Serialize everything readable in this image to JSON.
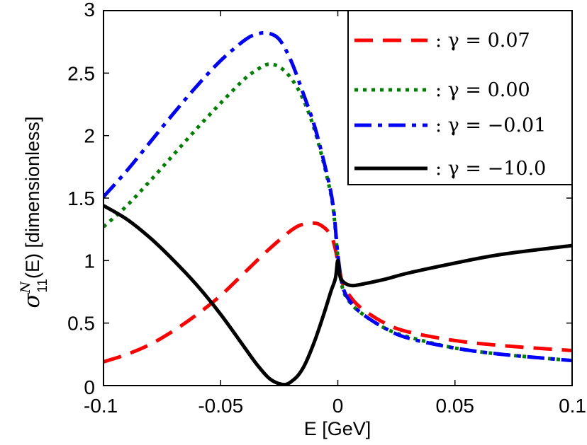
{
  "chart_data": {
    "type": "line",
    "xlabel": "E [GeV]",
    "ylabel_math": "σ",
    "ylabel_sup": "N",
    "ylabel_sub": "11",
    "ylabel_rest": "(E) [dimensionless]",
    "xlim": [
      -0.1,
      0.1
    ],
    "ylim": [
      0,
      3
    ],
    "x_ticks": [
      -0.1,
      -0.05,
      0,
      0.05,
      0.1
    ],
    "x_tick_labels": [
      "-0.1",
      "-0.05",
      "0",
      "0.05",
      "0.1"
    ],
    "y_ticks": [
      0,
      0.5,
      1,
      1.5,
      2,
      2.5,
      3
    ],
    "y_tick_labels": [
      "0",
      "0.5",
      "1",
      "1.5",
      "2",
      "2.5",
      "3"
    ],
    "legend_position": "top-right",
    "series": [
      {
        "name": ": γ = 0.07",
        "color": "#ff0000",
        "style": "dashed",
        "x": [
          -0.1,
          -0.09,
          -0.08,
          -0.07,
          -0.06,
          -0.05,
          -0.04,
          -0.03,
          -0.02,
          -0.015,
          -0.01,
          -0.007,
          -0.004,
          -0.002,
          0,
          0.002,
          0.005,
          0.01,
          0.02,
          0.03,
          0.05,
          0.07,
          0.1
        ],
        "y": [
          0.19,
          0.25,
          0.33,
          0.44,
          0.57,
          0.72,
          0.9,
          1.08,
          1.24,
          1.29,
          1.3,
          1.28,
          1.23,
          1.16,
          1.0,
          0.82,
          0.72,
          0.62,
          0.5,
          0.43,
          0.36,
          0.32,
          0.28
        ]
      },
      {
        "name": ": γ = 0.00",
        "color": "#008000",
        "style": "dotted",
        "x": [
          -0.1,
          -0.09,
          -0.08,
          -0.07,
          -0.06,
          -0.05,
          -0.04,
          -0.035,
          -0.03,
          -0.025,
          -0.02,
          -0.015,
          -0.01,
          -0.005,
          -0.002,
          0,
          0.002,
          0.005,
          0.01,
          0.02,
          0.03,
          0.05,
          0.07,
          0.1
        ],
        "y": [
          1.27,
          1.44,
          1.64,
          1.85,
          2.06,
          2.26,
          2.45,
          2.52,
          2.57,
          2.55,
          2.46,
          2.3,
          2.05,
          1.7,
          1.42,
          1.03,
          0.78,
          0.67,
          0.58,
          0.46,
          0.39,
          0.3,
          0.25,
          0.2
        ]
      },
      {
        "name": ": γ = −0.01",
        "color": "#0000ff",
        "style": "dashdot",
        "x": [
          -0.1,
          -0.09,
          -0.08,
          -0.07,
          -0.06,
          -0.05,
          -0.04,
          -0.035,
          -0.03,
          -0.025,
          -0.02,
          -0.015,
          -0.01,
          -0.005,
          -0.002,
          0,
          0.002,
          0.005,
          0.01,
          0.02,
          0.03,
          0.05,
          0.07,
          0.1
        ],
        "y": [
          1.51,
          1.72,
          1.95,
          2.18,
          2.4,
          2.6,
          2.76,
          2.81,
          2.82,
          2.77,
          2.6,
          2.35,
          2.08,
          1.72,
          1.44,
          1.05,
          0.8,
          0.68,
          0.58,
          0.46,
          0.38,
          0.3,
          0.25,
          0.2
        ]
      },
      {
        "name": ": γ = −10.0",
        "color": "#000000",
        "style": "solid",
        "x": [
          -0.1,
          -0.09,
          -0.08,
          -0.07,
          -0.06,
          -0.05,
          -0.04,
          -0.035,
          -0.03,
          -0.027,
          -0.024,
          -0.022,
          -0.02,
          -0.017,
          -0.014,
          -0.01,
          -0.006,
          -0.003,
          -0.001,
          0,
          0.001,
          0.003,
          0.006,
          0.01,
          0.02,
          0.03,
          0.05,
          0.07,
          0.1
        ],
        "y": [
          1.44,
          1.33,
          1.18,
          1.0,
          0.8,
          0.57,
          0.31,
          0.18,
          0.07,
          0.03,
          0.01,
          0.01,
          0.03,
          0.08,
          0.17,
          0.35,
          0.57,
          0.75,
          0.86,
          1.0,
          0.87,
          0.82,
          0.8,
          0.81,
          0.85,
          0.9,
          0.98,
          1.05,
          1.12
        ]
      }
    ]
  }
}
